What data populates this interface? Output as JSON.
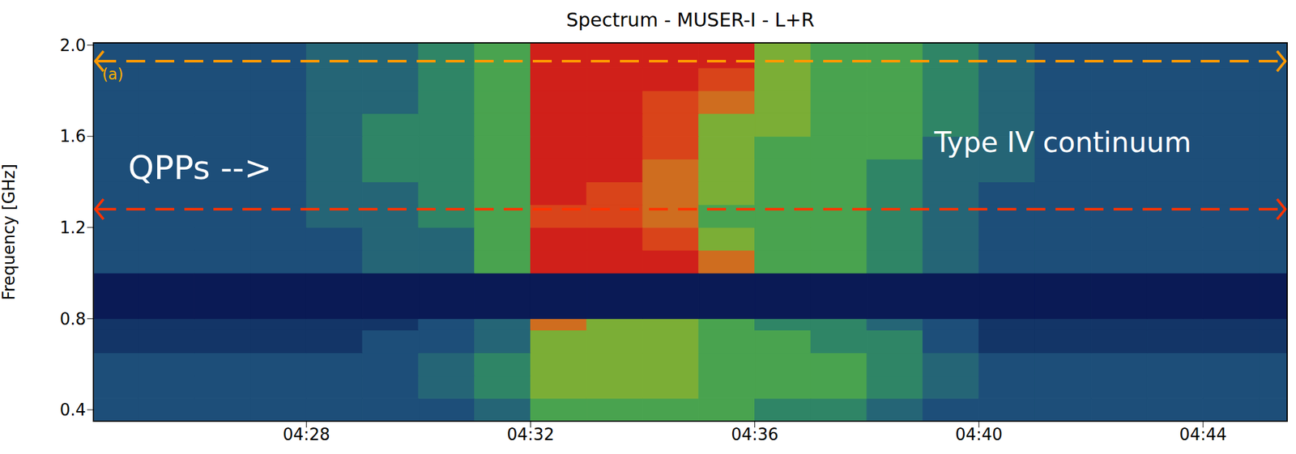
{
  "chart_data": {
    "type": "heatmap",
    "title": "Spectrum - MUSER-I - L+R",
    "y_label": "Frequency [GHz]",
    "xlim": [
      24.2,
      45.5
    ],
    "xticks": [
      {
        "value": 28,
        "label": "04:28"
      },
      {
        "value": 32,
        "label": "04:32"
      },
      {
        "value": 36,
        "label": "04:36"
      },
      {
        "value": 40,
        "label": "04:40"
      },
      {
        "value": 44,
        "label": "04:44"
      }
    ],
    "ylim": [
      0.35,
      2.01
    ],
    "yticks": [
      0.4,
      0.8,
      1.2,
      1.6,
      {
        "value": 2,
        "label": "2.0"
      }
    ],
    "cells": {
      "x_edges": [
        24.2,
        25,
        26,
        27,
        28,
        29,
        30,
        31,
        32,
        33,
        34,
        35,
        36,
        37,
        38,
        39,
        40,
        41,
        42,
        43,
        44,
        45,
        45.5
      ],
      "y_edges": [
        0.35,
        0.45,
        0.55,
        0.65,
        0.75,
        0.8,
        1.0,
        1.1,
        1.2,
        1.3,
        1.4,
        1.5,
        1.6,
        1.7,
        1.8,
        1.9,
        2.01
      ],
      "values": [
        [
          2,
          2,
          2,
          2,
          2,
          2,
          2,
          3,
          5,
          5,
          5,
          5,
          4,
          4,
          3,
          2,
          2,
          2,
          2,
          2,
          2,
          2
        ],
        [
          2,
          2,
          2,
          2,
          2,
          2,
          3,
          4,
          6,
          6,
          6,
          5,
          5,
          5,
          4,
          3,
          2,
          2,
          2,
          2,
          2,
          2
        ],
        [
          2,
          2,
          2,
          2,
          2,
          2,
          3,
          4,
          6,
          6,
          6,
          5,
          5,
          5,
          4,
          3,
          2,
          2,
          2,
          2,
          2,
          2
        ],
        [
          1,
          1,
          1,
          1,
          1,
          2,
          2,
          3,
          6,
          6,
          6,
          5,
          5,
          4,
          4,
          2,
          1,
          1,
          1,
          1,
          1,
          1
        ],
        [
          1,
          1,
          1,
          1,
          1,
          1,
          2,
          3,
          7,
          6,
          6,
          5,
          4,
          4,
          3,
          2,
          1,
          1,
          1,
          1,
          1,
          1
        ],
        [
          null,
          null,
          null,
          null,
          null,
          null,
          null,
          null,
          null,
          null,
          null,
          null,
          null,
          null,
          null,
          null,
          null,
          null,
          null,
          null,
          null,
          null
        ],
        [
          2,
          2,
          2,
          2,
          2,
          3,
          3,
          5,
          9,
          9,
          9,
          7,
          5,
          5,
          4,
          3,
          2,
          2,
          2,
          2,
          2,
          2
        ],
        [
          2,
          2,
          2,
          2,
          2,
          3,
          3,
          5,
          9,
          9,
          8,
          6,
          5,
          5,
          4,
          3,
          2,
          2,
          2,
          2,
          2,
          2
        ],
        [
          2,
          2,
          2,
          2,
          3,
          3,
          4,
          5,
          8,
          8,
          7,
          5,
          5,
          5,
          4,
          3,
          2,
          2,
          2,
          2,
          2,
          2
        ],
        [
          2,
          2,
          2,
          2,
          3,
          3,
          4,
          5,
          9,
          8,
          7,
          6,
          5,
          5,
          4,
          3,
          2,
          2,
          2,
          2,
          2,
          2
        ],
        [
          2,
          2,
          2,
          2,
          3,
          4,
          4,
          5,
          9,
          9,
          7,
          6,
          5,
          5,
          4,
          3,
          3,
          2,
          2,
          2,
          2,
          2
        ],
        [
          2,
          2,
          2,
          2,
          3,
          4,
          4,
          5,
          9,
          9,
          8,
          6,
          5,
          5,
          5,
          3,
          3,
          2,
          2,
          2,
          2,
          2
        ],
        [
          2,
          2,
          2,
          2,
          3,
          4,
          4,
          5,
          9,
          9,
          8,
          6,
          6,
          5,
          5,
          4,
          3,
          2,
          2,
          2,
          2,
          2
        ],
        [
          2,
          2,
          2,
          2,
          3,
          3,
          4,
          5,
          9,
          9,
          8,
          7,
          6,
          5,
          5,
          4,
          3,
          2,
          2,
          2,
          2,
          2
        ],
        [
          2,
          2,
          2,
          2,
          3,
          3,
          4,
          5,
          9,
          9,
          9,
          8,
          6,
          5,
          5,
          4,
          3,
          2,
          2,
          2,
          2,
          2
        ],
        [
          2,
          2,
          2,
          2,
          3,
          3,
          4,
          5,
          9,
          9,
          9,
          9,
          6,
          5,
          5,
          4,
          3,
          2,
          2,
          2,
          2,
          2
        ]
      ]
    },
    "reference_lines": [
      {
        "y": 1.93,
        "color": "#ff9900"
      },
      {
        "y": 1.28,
        "color": "#ff3300"
      }
    ],
    "annotations": [
      "(a)",
      "QPPs -->",
      "Type IV continuum"
    ]
  }
}
